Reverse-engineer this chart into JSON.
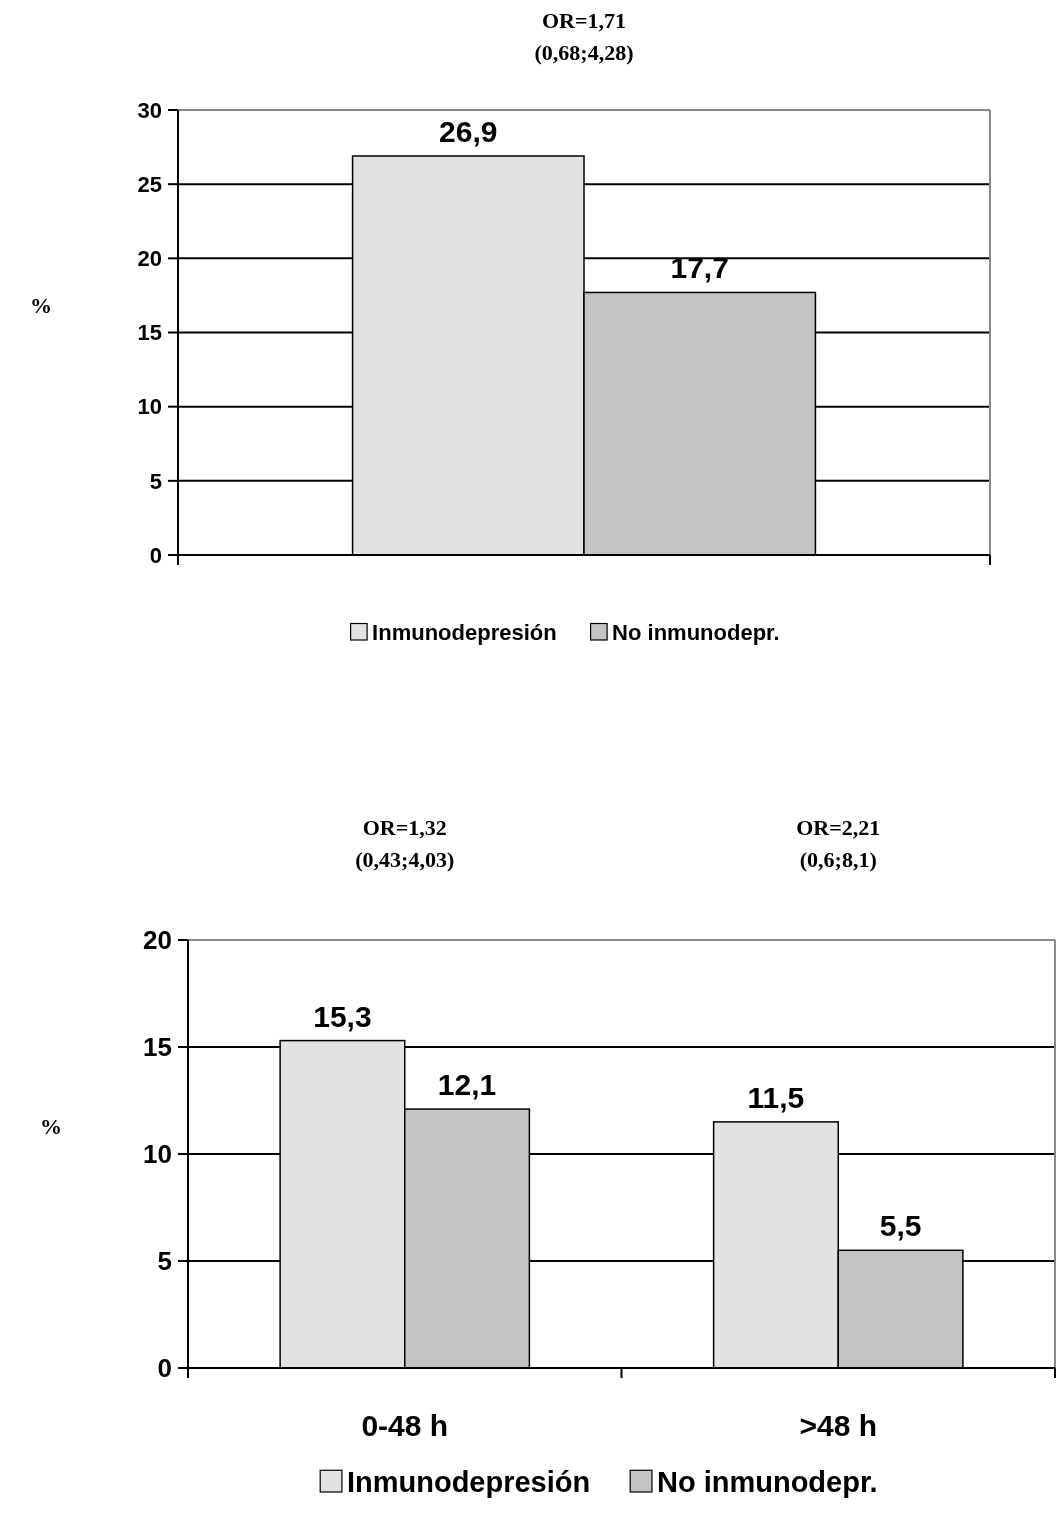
{
  "chart_data": [
    {
      "type": "bar",
      "categories": [
        null
      ],
      "ylabel": "%",
      "ylim": [
        0,
        30
      ],
      "yticks": [
        0,
        5,
        10,
        15,
        20,
        25,
        30
      ],
      "grid": "y",
      "legend": "bottom",
      "annotations": [
        "OR=1,71",
        "(0,68;4,28)"
      ],
      "series": [
        {
          "name": "Inmunodepresión",
          "color": "#e2e2e2",
          "values": [
            26.9
          ],
          "value_labels": [
            "26,9"
          ]
        },
        {
          "name": "No inmunodepr.",
          "color": "#c4c4c4",
          "values": [
            17.7
          ],
          "value_labels": [
            "17,7"
          ]
        }
      ]
    },
    {
      "type": "bar",
      "categories": [
        "0-48 h",
        ">48 h"
      ],
      "ylabel": "%",
      "ylim": [
        0,
        20
      ],
      "yticks": [
        0,
        5,
        10,
        15,
        20
      ],
      "grid": "y",
      "legend": "bottom",
      "annotations": [
        "OR=1,32",
        "(0,43;4,03)",
        "OR=2,21",
        "(0,6;8,1)"
      ],
      "series": [
        {
          "name": "Inmunodepresión",
          "color": "#e2e2e2",
          "values": [
            15.3,
            11.5
          ],
          "value_labels": [
            "15,3",
            "11,5"
          ]
        },
        {
          "name": "No inmunodepr.",
          "color": "#c4c4c4",
          "values": [
            12.1,
            5.5
          ],
          "value_labels": [
            "12,1",
            "5,5"
          ]
        }
      ]
    }
  ]
}
